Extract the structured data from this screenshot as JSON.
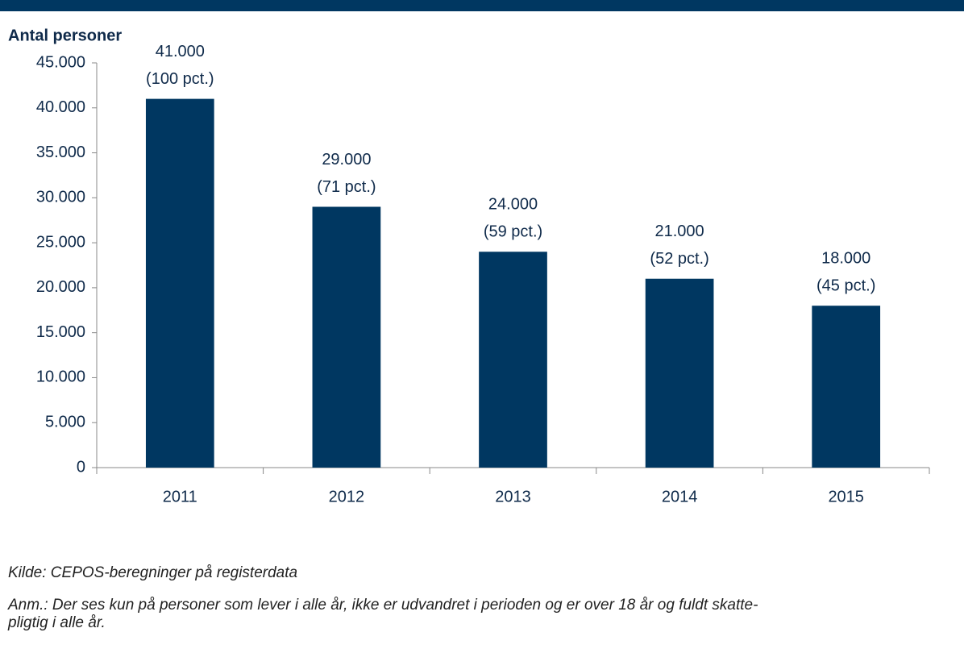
{
  "chart_data": {
    "type": "bar",
    "y_label": "Antal personer",
    "categories": [
      "2011",
      "2012",
      "2013",
      "2014",
      "2015"
    ],
    "values": [
      41000,
      29000,
      24000,
      21000,
      18000
    ],
    "value_labels": [
      "41.000",
      "29.000",
      "24.000",
      "21.000",
      "18.000"
    ],
    "share_labels": [
      "(100 pct.)",
      "(71 pct.)",
      "(59 pct.)",
      "(52 pct.)",
      "(45 pct.)"
    ],
    "color": "#003761",
    "ylim": [
      0,
      45000
    ],
    "yticks": [
      0,
      {
        "value": 5000,
        "label": "5.000"
      },
      {
        "value": 10000,
        "label": "10.000"
      },
      {
        "value": 15000,
        "label": "15.000"
      },
      {
        "value": 20000,
        "label": "20.000"
      },
      {
        "value": 25000,
        "label": "25.000"
      },
      {
        "value": 30000,
        "label": "30.000"
      },
      {
        "value": 35000,
        "label": "35.000"
      },
      {
        "value": 40000,
        "label": "40.000"
      },
      {
        "value": 45000,
        "label": "45.000"
      }
    ],
    "grid": false,
    "source": "Kilde: CEPOS-beregninger på registerdata",
    "notes": [
      "Anm.: Der ses kun på personer som lever i alle år, ikke er udvandret i perioden og er over 18 år og fuldt skatte-",
      "pligtig i alle år."
    ]
  }
}
